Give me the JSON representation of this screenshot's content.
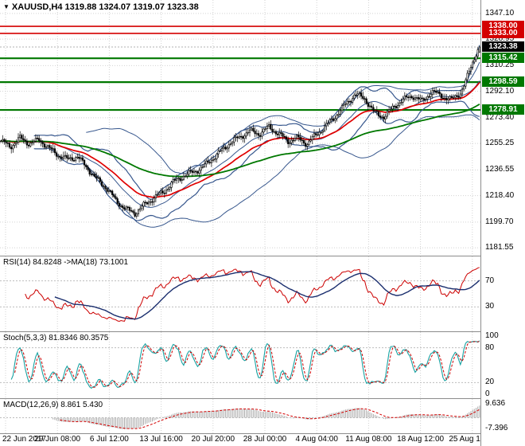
{
  "header": {
    "symbol_line": "XAUUSD,H4 1319.88 1324.07 1319.07 1323.38",
    "dropdown_icon": "▼"
  },
  "chart_data": {
    "type": "candlestick",
    "title": "XAUUSD,H4",
    "symbol": "XAUUSD",
    "timeframe": "H4",
    "ohlc": {
      "open": 1319.88,
      "high": 1324.07,
      "low": 1319.07,
      "close": 1323.38
    },
    "x_labels": [
      "22 Jun 2017",
      "29 Jun 08:00",
      "6 Jul 12:00",
      "13 Jul 16:00",
      "20 Jul 20:00",
      "28 Jul 00:00",
      "4 Aug 04:00",
      "11 Aug 08:00",
      "18 Aug 12:00",
      "25 Aug 16:00"
    ],
    "price_axis": {
      "top": 1356.6,
      "bottom": 1176.0,
      "ticks": [
        1347.1,
        1328.95,
        1310.25,
        1292.1,
        1273.4,
        1255.25,
        1236.55,
        1218.4,
        1199.7,
        1181.55
      ]
    },
    "levels": [
      {
        "value": 1338.0,
        "label": "1338.00",
        "color": "#d40000",
        "width": 1.6
      },
      {
        "value": 1333.0,
        "label": "1333.00",
        "color": "#d40000",
        "width": 1.6
      },
      {
        "value": 1315.42,
        "label": "1315.42",
        "color": "#007800",
        "width": 2.2
      },
      {
        "value": 1298.59,
        "label": "1298.59",
        "color": "#007800",
        "width": 2.2
      },
      {
        "value": 1278.91,
        "label": "1278.91",
        "color": "#007800",
        "width": 2.2
      }
    ],
    "current_price": 1323.38,
    "current_price_label": "1323.38",
    "num_candles": 276,
    "price_path": [
      [
        0.0,
        1257
      ],
      [
        0.02,
        1253
      ],
      [
        0.04,
        1259
      ],
      [
        0.06,
        1255
      ],
      [
        0.08,
        1258
      ],
      [
        0.1,
        1252
      ],
      [
        0.12,
        1247
      ],
      [
        0.14,
        1244
      ],
      [
        0.16,
        1246
      ],
      [
        0.18,
        1238
      ],
      [
        0.2,
        1230
      ],
      [
        0.22,
        1224
      ],
      [
        0.24,
        1215
      ],
      [
        0.26,
        1209
      ],
      [
        0.28,
        1206
      ],
      [
        0.3,
        1212
      ],
      [
        0.32,
        1217
      ],
      [
        0.34,
        1221
      ],
      [
        0.36,
        1228
      ],
      [
        0.38,
        1232
      ],
      [
        0.4,
        1235
      ],
      [
        0.42,
        1238
      ],
      [
        0.44,
        1244
      ],
      [
        0.46,
        1250
      ],
      [
        0.48,
        1256
      ],
      [
        0.5,
        1260
      ],
      [
        0.52,
        1264
      ],
      [
        0.54,
        1262
      ],
      [
        0.56,
        1267
      ],
      [
        0.58,
        1262
      ],
      [
        0.6,
        1257
      ],
      [
        0.62,
        1259
      ],
      [
        0.64,
        1255
      ],
      [
        0.66,
        1262
      ],
      [
        0.68,
        1268
      ],
      [
        0.7,
        1275
      ],
      [
        0.72,
        1283
      ],
      [
        0.74,
        1290
      ],
      [
        0.76,
        1287
      ],
      [
        0.78,
        1277
      ],
      [
        0.8,
        1274
      ],
      [
        0.82,
        1281
      ],
      [
        0.84,
        1286
      ],
      [
        0.86,
        1289
      ],
      [
        0.88,
        1285
      ],
      [
        0.9,
        1292
      ],
      [
        0.92,
        1289
      ],
      [
        0.94,
        1286
      ],
      [
        0.96,
        1291
      ],
      [
        0.97,
        1298
      ],
      [
        0.98,
        1308
      ],
      [
        0.99,
        1317
      ],
      [
        1.0,
        1323.4
      ]
    ],
    "indicators": {
      "rsi": {
        "label": "RSI(14) 84.8248 ->MA(18) 73.1001",
        "period": 14,
        "ma_period": 18,
        "value": 84.8248,
        "ma_value": 73.1001,
        "levels": [
          70,
          30
        ]
      },
      "stoch": {
        "label": "Stoch(5,3,3) 81.8346 80.3575",
        "k": 81.8346,
        "d": 80.3575,
        "levels": [
          80,
          20
        ],
        "scale_labels": [
          100,
          80,
          20,
          0
        ]
      },
      "macd": {
        "label": "MACD(12,26,9) 8.861 5.430",
        "value": 8.861,
        "signal": 5.43,
        "scale_top": 9.636,
        "scale_bottom": -7.396
      }
    },
    "colors": {
      "background": "#ffffff",
      "grid": "#d2d2d2",
      "candle_stroke": "#000000",
      "bull_fill": "#ffffff",
      "bear_fill": "#000000",
      "bollinger": "#38588e",
      "ma_fast": "#e00000",
      "ma_slow": "#007800",
      "rsi_line": "#cc0000",
      "rsi_ma": "#1a2e6e",
      "stoch_k": "#17a2a2",
      "stoch_d": "#cc0000",
      "macd_hist": "#a9a9a9",
      "macd_signal": "#d40000",
      "tag_current_bg": "#000000",
      "separator": "#8c8c8c",
      "current_price_line": "#b0b0b0"
    }
  }
}
